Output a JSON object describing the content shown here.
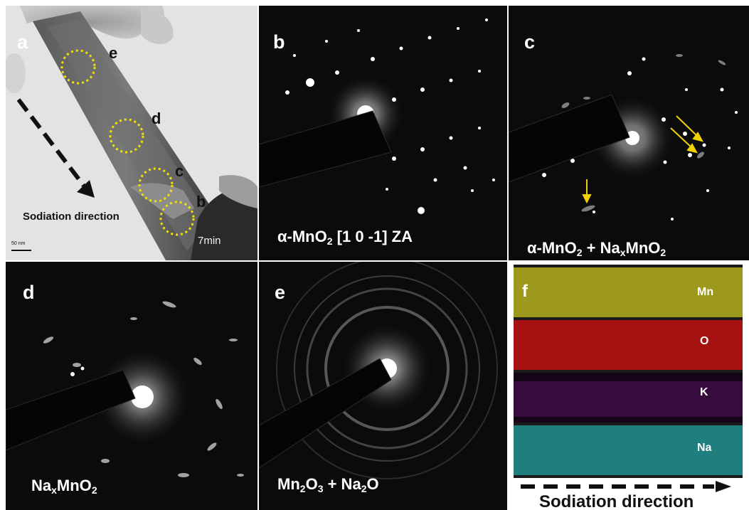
{
  "panel_a": {
    "label": "a",
    "circle_labels": [
      "e",
      "d",
      "c",
      "b"
    ],
    "arrow_text": "Sodiation direction",
    "time_text": "7min",
    "scale_bar_text": "50 nm"
  },
  "panel_b": {
    "label": "b",
    "caption_greek": "α-MnO",
    "caption_sub": "2",
    "caption_tail": " [1 0 -1] ZA"
  },
  "panel_c": {
    "label": "c",
    "caption_part1": "α-MnO",
    "caption_sub1": "2",
    "caption_part2": " + Na",
    "caption_sub2": "x",
    "caption_part3": "MnO",
    "caption_sub3": "2"
  },
  "panel_d": {
    "label": "d",
    "caption_part1": "Na",
    "caption_sub1": "x",
    "caption_part2": "MnO",
    "caption_sub2": "2"
  },
  "panel_e": {
    "label": "e",
    "caption_part1": "Mn",
    "caption_sub1": "2",
    "caption_part2": "O",
    "caption_sub2": "3",
    "caption_part3": " + Na",
    "caption_sub3": "2",
    "caption_part4": "O"
  },
  "panel_f": {
    "label": "f",
    "elements": [
      {
        "name": "Mn",
        "color": "#b5b322"
      },
      {
        "name": "O",
        "color": "#c01616"
      },
      {
        "name": "K",
        "color": "#7a1a86"
      },
      {
        "name": "Na",
        "color": "#2aa3a3"
      }
    ],
    "arrow_text": "Sodiation direction"
  },
  "colors": {
    "circle": "#f2e200",
    "arrow_yellow": "#f2d300"
  }
}
